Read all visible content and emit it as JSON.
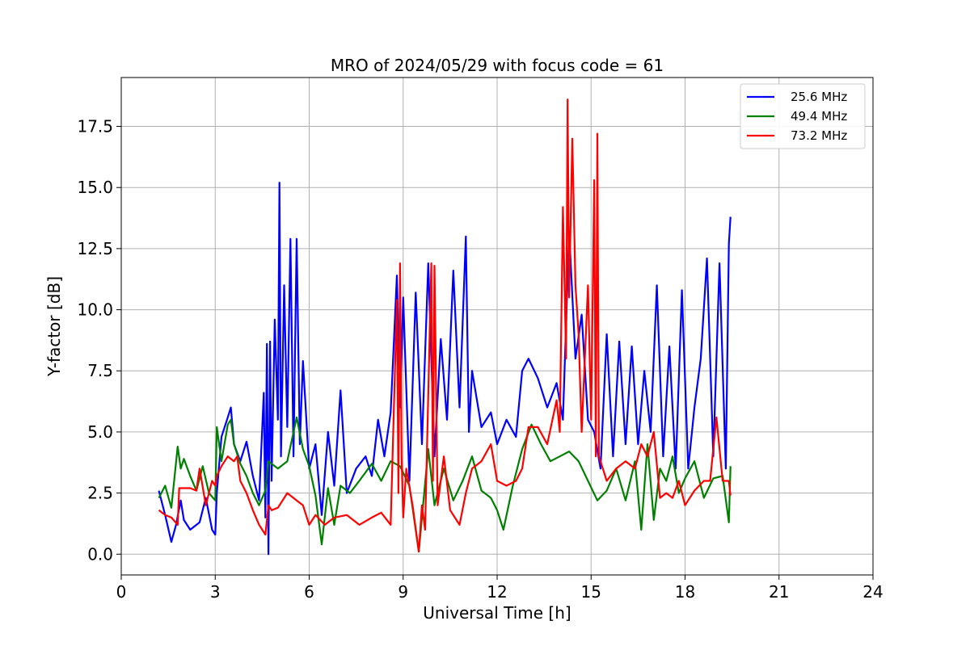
{
  "chart_data": {
    "type": "line",
    "title": "MRO of 2024/05/29 with focus code = 61",
    "xlabel": "Universal Time [h]",
    "ylabel": "Y-factor [dB]",
    "xlim": [
      0,
      24
    ],
    "ylim": [
      -0.85,
      19.5
    ],
    "xticks": [
      0,
      3,
      6,
      9,
      12,
      15,
      18,
      21,
      24
    ],
    "xtick_labels": [
      "0",
      "3",
      "6",
      "9",
      "12",
      "15",
      "18",
      "21",
      "24"
    ],
    "yticks": [
      0.0,
      2.5,
      5.0,
      7.5,
      10.0,
      12.5,
      15.0,
      17.5
    ],
    "ytick_labels": [
      "0.0",
      "2.5",
      "5.0",
      "7.5",
      "10.0",
      "12.5",
      "15.0",
      "17.5"
    ],
    "grid": true,
    "legend_position": "top-right",
    "series": [
      {
        "name": "25.6 MHz",
        "color": "#0000ff",
        "x": [
          1.2,
          1.4,
          1.6,
          1.75,
          1.9,
          2.0,
          2.2,
          2.5,
          2.7,
          2.9,
          3.0,
          3.05,
          3.2,
          3.4,
          3.5,
          3.6,
          3.8,
          4.0,
          4.2,
          4.4,
          4.55,
          4.6,
          4.65,
          4.7,
          4.75,
          4.8,
          4.9,
          5.0,
          5.05,
          5.1,
          5.2,
          5.3,
          5.4,
          5.5,
          5.6,
          5.7,
          5.8,
          6.0,
          6.2,
          6.4,
          6.6,
          6.8,
          7.0,
          7.2,
          7.5,
          7.8,
          8.0,
          8.2,
          8.4,
          8.6,
          8.8,
          8.9,
          9.0,
          9.2,
          9.4,
          9.6,
          9.8,
          10.0,
          10.2,
          10.4,
          10.6,
          10.8,
          11.0,
          11.1,
          11.2,
          11.5,
          11.8,
          12.0,
          12.3,
          12.6,
          12.8,
          13.0,
          13.3,
          13.6,
          13.9,
          14.1,
          14.3,
          14.5,
          14.7,
          14.9,
          15.1,
          15.3,
          15.5,
          15.7,
          15.9,
          16.1,
          16.3,
          16.5,
          16.7,
          16.9,
          17.1,
          17.3,
          17.5,
          17.7,
          17.9,
          18.1,
          18.3,
          18.5,
          18.7,
          18.9,
          19.1,
          19.3,
          19.4,
          19.45
        ],
        "values": [
          2.6,
          1.6,
          0.5,
          1.2,
          2.2,
          1.4,
          1.0,
          1.3,
          2.3,
          1.0,
          0.8,
          2.5,
          4.8,
          5.6,
          6.0,
          4.5,
          3.8,
          4.6,
          3.2,
          2.2,
          6.6,
          1.5,
          8.6,
          0.0,
          8.7,
          3.0,
          9.6,
          5.5,
          15.2,
          4.0,
          11.0,
          5.2,
          12.9,
          4.0,
          12.9,
          4.5,
          7.9,
          3.5,
          4.5,
          1.6,
          5.0,
          2.8,
          6.7,
          2.5,
          3.5,
          4.0,
          3.2,
          5.5,
          4.0,
          5.8,
          11.4,
          6.0,
          10.5,
          3.0,
          10.7,
          4.5,
          11.9,
          4.0,
          8.8,
          5.5,
          11.6,
          6.0,
          13.0,
          5.0,
          7.5,
          5.2,
          5.8,
          4.5,
          5.5,
          4.8,
          7.5,
          8.0,
          7.2,
          6.0,
          7.0,
          5.5,
          13.2,
          8.0,
          9.8,
          5.5,
          5.0,
          3.5,
          9.0,
          4.0,
          8.7,
          4.5,
          8.5,
          4.5,
          7.5,
          5.0,
          11.0,
          4.0,
          8.5,
          3.5,
          10.8,
          3.5,
          6.0,
          8.0,
          12.1,
          4.0,
          11.9,
          3.5,
          12.7,
          13.8
        ]
      },
      {
        "name": "49.4 MHz",
        "color": "#008000",
        "x": [
          1.2,
          1.4,
          1.6,
          1.8,
          1.9,
          2.0,
          2.2,
          2.4,
          2.6,
          2.8,
          3.0,
          3.05,
          3.2,
          3.4,
          3.5,
          3.6,
          3.8,
          4.0,
          4.2,
          4.4,
          4.6,
          4.7,
          5.0,
          5.3,
          5.6,
          5.8,
          6.0,
          6.2,
          6.4,
          6.6,
          6.8,
          7.0,
          7.3,
          7.6,
          8.0,
          8.3,
          8.6,
          8.9,
          9.2,
          9.5,
          9.8,
          10.0,
          10.3,
          10.6,
          10.9,
          11.2,
          11.5,
          11.8,
          12.0,
          12.2,
          12.5,
          12.8,
          13.1,
          13.4,
          13.7,
          14.0,
          14.3,
          14.6,
          14.9,
          15.2,
          15.5,
          15.8,
          16.1,
          16.4,
          16.6,
          16.8,
          17.0,
          17.2,
          17.4,
          17.6,
          17.8,
          18.0,
          18.3,
          18.6,
          18.9,
          19.2,
          19.4,
          19.45
        ],
        "values": [
          2.3,
          2.8,
          1.9,
          4.4,
          3.5,
          3.9,
          3.2,
          2.6,
          3.6,
          2.5,
          2.2,
          5.2,
          3.8,
          5.3,
          5.5,
          4.5,
          3.7,
          3.2,
          2.5,
          2.0,
          2.6,
          3.8,
          3.5,
          3.8,
          5.6,
          4.3,
          3.6,
          2.4,
          0.4,
          2.7,
          1.2,
          2.8,
          2.5,
          3.0,
          3.7,
          3.0,
          3.8,
          3.6,
          2.8,
          0.1,
          4.3,
          2.0,
          3.5,
          2.2,
          3.0,
          4.0,
          2.6,
          2.3,
          1.8,
          1.0,
          2.8,
          4.3,
          5.3,
          4.5,
          3.8,
          4.0,
          4.2,
          3.8,
          3.0,
          2.2,
          2.6,
          3.5,
          2.2,
          3.8,
          1.0,
          4.5,
          1.4,
          3.5,
          3.0,
          4.0,
          2.5,
          3.1,
          3.8,
          2.3,
          3.1,
          3.2,
          1.3,
          3.6
        ]
      },
      {
        "name": "73.2 MHz",
        "color": "#ff0000",
        "x": [
          1.2,
          1.4,
          1.6,
          1.8,
          1.85,
          2.0,
          2.2,
          2.4,
          2.5,
          2.7,
          2.9,
          3.0,
          3.05,
          3.2,
          3.4,
          3.6,
          3.7,
          3.8,
          4.0,
          4.2,
          4.4,
          4.6,
          4.7,
          4.8,
          5.0,
          5.3,
          5.6,
          5.8,
          6.0,
          6.2,
          6.5,
          6.8,
          7.2,
          7.6,
          8.0,
          8.3,
          8.6,
          8.8,
          8.85,
          8.9,
          8.95,
          9.0,
          9.1,
          9.3,
          9.5,
          9.6,
          9.7,
          9.9,
          9.95,
          10.0,
          10.1,
          10.3,
          10.5,
          10.8,
          11.0,
          11.2,
          11.5,
          11.8,
          12.0,
          12.3,
          12.6,
          12.8,
          13.0,
          13.3,
          13.6,
          13.9,
          14.0,
          14.1,
          14.2,
          14.25,
          14.3,
          14.4,
          14.5,
          14.6,
          14.7,
          14.9,
          15.0,
          15.1,
          15.15,
          15.2,
          15.25,
          15.3,
          15.5,
          15.8,
          16.1,
          16.4,
          16.6,
          16.8,
          17.0,
          17.2,
          17.4,
          17.6,
          17.8,
          18.0,
          18.3,
          18.6,
          18.8,
          19.0,
          19.2,
          19.4,
          19.45
        ],
        "values": [
          1.8,
          1.6,
          1.5,
          1.2,
          2.7,
          2.7,
          2.7,
          2.6,
          3.5,
          2.0,
          3.0,
          2.8,
          3.2,
          3.6,
          4.0,
          3.8,
          4.0,
          3.0,
          2.5,
          1.8,
          1.2,
          0.8,
          2.0,
          1.8,
          1.9,
          2.5,
          2.2,
          2.0,
          1.2,
          1.6,
          1.2,
          1.5,
          1.6,
          1.2,
          1.5,
          1.7,
          1.2,
          10.4,
          2.5,
          11.9,
          4.0,
          1.5,
          3.5,
          2.0,
          0.1,
          2.0,
          1.0,
          11.9,
          3.0,
          11.8,
          2.0,
          4.0,
          1.8,
          1.2,
          2.5,
          3.5,
          3.8,
          4.5,
          3.0,
          2.8,
          3.0,
          3.5,
          5.2,
          5.2,
          4.5,
          6.3,
          5.0,
          14.2,
          8.0,
          18.6,
          10.5,
          17.0,
          11.0,
          9.0,
          5.0,
          11.0,
          5.5,
          15.3,
          4.0,
          17.2,
          4.0,
          3.8,
          3.0,
          3.5,
          3.8,
          3.5,
          4.5,
          4.0,
          5.0,
          2.3,
          2.5,
          2.3,
          3.0,
          2.0,
          2.6,
          3.0,
          3.0,
          5.6,
          3.0,
          3.0,
          2.4
        ]
      }
    ]
  }
}
